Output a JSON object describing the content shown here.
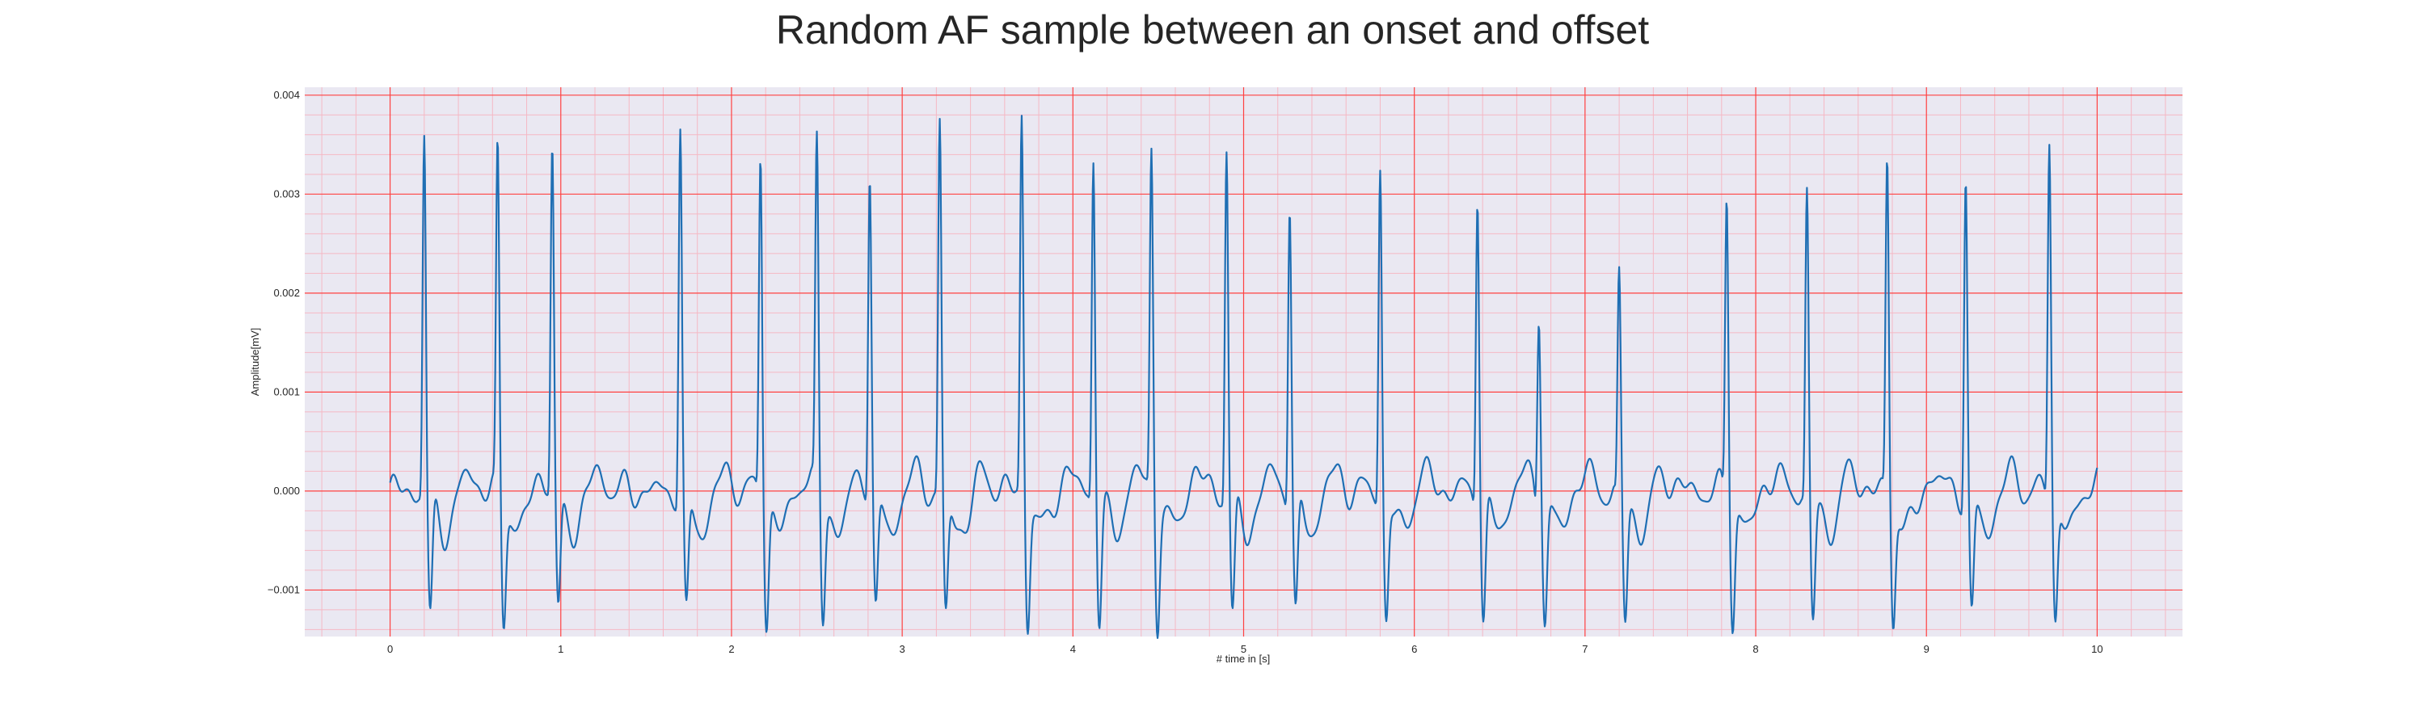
{
  "chart_data": {
    "type": "line",
    "title": "Random AF sample between an onset and offset",
    "xlabel": "# time in [s]",
    "ylabel": "Amplitude[mV]",
    "xlim": [
      -0.5,
      10.5
    ],
    "ylim": [
      -0.00147,
      0.00408
    ],
    "xticks": [
      0,
      1,
      2,
      3,
      4,
      5,
      6,
      7,
      8,
      9,
      10
    ],
    "xtick_labels": [
      "0",
      "1",
      "2",
      "3",
      "4",
      "5",
      "6",
      "7",
      "8",
      "9",
      "10"
    ],
    "yticks": [
      -0.001,
      0.0,
      0.001,
      0.002,
      0.003,
      0.004
    ],
    "ytick_labels": [
      "−0.001",
      "0.000",
      "0.001",
      "0.002",
      "0.003",
      "0.004"
    ],
    "grid": true,
    "background_color": "#eae8f2",
    "major_grid_color": "#ff4040",
    "minor_grid_color": "#f5b8c4",
    "line_color": "#1f6fb4",
    "series": [
      {
        "name": "",
        "sample_rate_hz": 50,
        "x_start": 0,
        "x_end": 10,
        "r_peaks": [
          {
            "t": 0.2,
            "amp": 0.00364
          },
          {
            "t": 0.63,
            "amp": 0.00344
          },
          {
            "t": 0.95,
            "amp": 0.00344
          },
          {
            "t": 1.7,
            "amp": 0.00372
          },
          {
            "t": 2.17,
            "amp": 0.00347
          },
          {
            "t": 2.5,
            "amp": 0.00344
          },
          {
            "t": 2.81,
            "amp": 0.00321
          },
          {
            "t": 3.22,
            "amp": 0.00373
          },
          {
            "t": 3.7,
            "amp": 0.00383
          },
          {
            "t": 4.12,
            "amp": 0.00345
          },
          {
            "t": 4.46,
            "amp": 0.00345
          },
          {
            "t": 4.9,
            "amp": 0.00352
          },
          {
            "t": 5.27,
            "amp": 0.003
          },
          {
            "t": 5.8,
            "amp": 0.00336
          },
          {
            "t": 6.37,
            "amp": 0.00316
          },
          {
            "t": 6.73,
            "amp": 0.00192
          },
          {
            "t": 7.2,
            "amp": 0.00218
          },
          {
            "t": 7.83,
            "amp": 0.00308
          },
          {
            "t": 8.3,
            "amp": 0.00305
          },
          {
            "t": 8.77,
            "amp": 0.00337
          },
          {
            "t": 9.23,
            "amp": 0.00325
          },
          {
            "t": 9.72,
            "amp": 0.00363
          }
        ]
      }
    ]
  }
}
